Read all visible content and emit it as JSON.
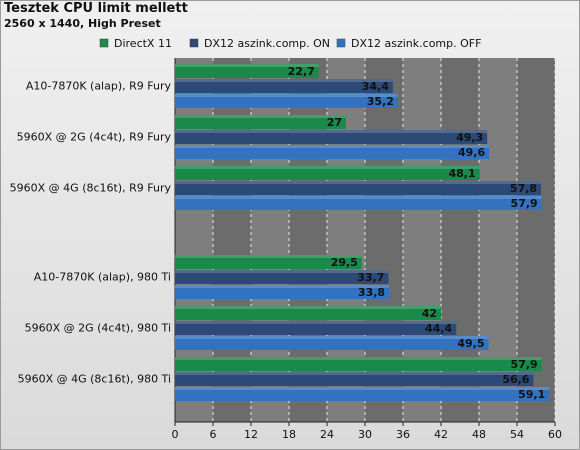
{
  "chart_data": {
    "type": "bar",
    "orientation": "horizontal",
    "title": "Tesztek CPU limit mellett",
    "subtitle": "2560 x 1440, High Preset",
    "xlim": [
      0,
      60
    ],
    "xticks": [
      0,
      6,
      12,
      18,
      24,
      30,
      36,
      42,
      48,
      54,
      60
    ],
    "grid": true,
    "legend_position": "top",
    "groups": [
      [
        "A10-7870K (alap), R9 Fury",
        "5960X @ 2G (4c4t), R9 Fury",
        "5960X @ 4G (8c16t), R9 Fury"
      ],
      [
        "A10-7870K (alap), 980 Ti",
        "5960X @ 2G (4c4t), 980 Ti",
        "5960X @ 4G (8c16t), 980 Ti"
      ]
    ],
    "series": [
      {
        "name": "DirectX 11",
        "color": "#1a8a4a",
        "labels": [
          "22,7",
          "27",
          "48,1",
          "29,5",
          "42",
          "57,9"
        ],
        "values": [
          22.7,
          27,
          48.1,
          29.5,
          42,
          57.9
        ]
      },
      {
        "name": "DX12 aszink.comp. ON",
        "color": "#2c4a78",
        "labels": [
          "34,4",
          "49,3",
          "57,8",
          "33,7",
          "44,4",
          "56,6"
        ],
        "values": [
          34.4,
          49.3,
          57.8,
          33.7,
          44.4,
          56.6
        ]
      },
      {
        "name": "DX12 aszink.comp. OFF",
        "color": "#3272c0",
        "labels": [
          "35,2",
          "49,6",
          "57,9",
          "33,8",
          "49,5",
          "59,1"
        ],
        "values": [
          35.2,
          49.6,
          57.9,
          33.8,
          49.5,
          59.1
        ]
      }
    ]
  }
}
